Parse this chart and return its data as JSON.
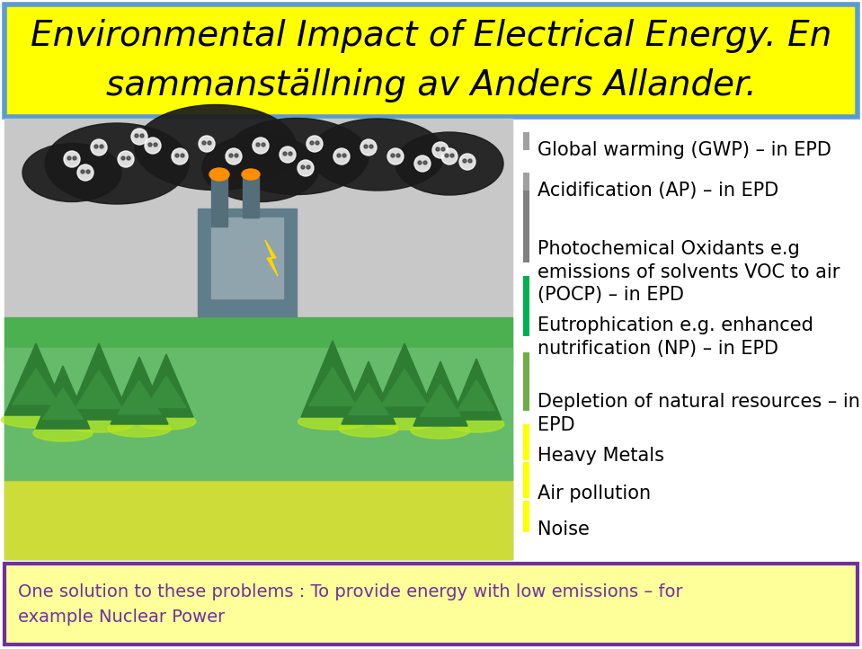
{
  "title_line1": "Environmental Impact of Electrical Energy. En",
  "title_line2": "sammanställning av Anders Allander.",
  "title_bg": "#FFFF00",
  "title_border": "#5B9BD5",
  "title_fontsize": 28,
  "title_color": "#000000",
  "bullet_items": [
    "Global warming (GWP) – in EPD",
    "Acidification (AP) – in EPD",
    "Photochemical Oxidants e.g\nemissions of solvents VOC to air\n(POCP) – in EPD",
    "Eutrophication e.g. enhanced\nnutrification (NP) – in EPD",
    "Depletion of natural resources – in\nEPD",
    "Heavy Metals",
    "Air pollution",
    "Noise"
  ],
  "bullet_fontsize": 15,
  "bullet_color": "#000000",
  "footer_text": "One solution to these problems : To provide energy with low emissions – for\nexample Nuclear Power",
  "footer_bg": "#FFFF99",
  "footer_border": "#7030A0",
  "footer_text_color": "#7030A0",
  "footer_fontsize": 14,
  "main_bg": "#FFFFFF",
  "bar_colors": [
    "#A0A0A0",
    "#A0A0A0",
    "#808080",
    "#00B050",
    "#70AD47",
    "#FFFF00",
    "#FFFF00",
    "#FFFF00"
  ],
  "bar_color_map": [
    "#A0A0A0",
    "#A0A0A0",
    "#808080",
    "#00B050",
    "#70AD47",
    "#FFFF00",
    "#FFFF00",
    "#FFFF00"
  ]
}
